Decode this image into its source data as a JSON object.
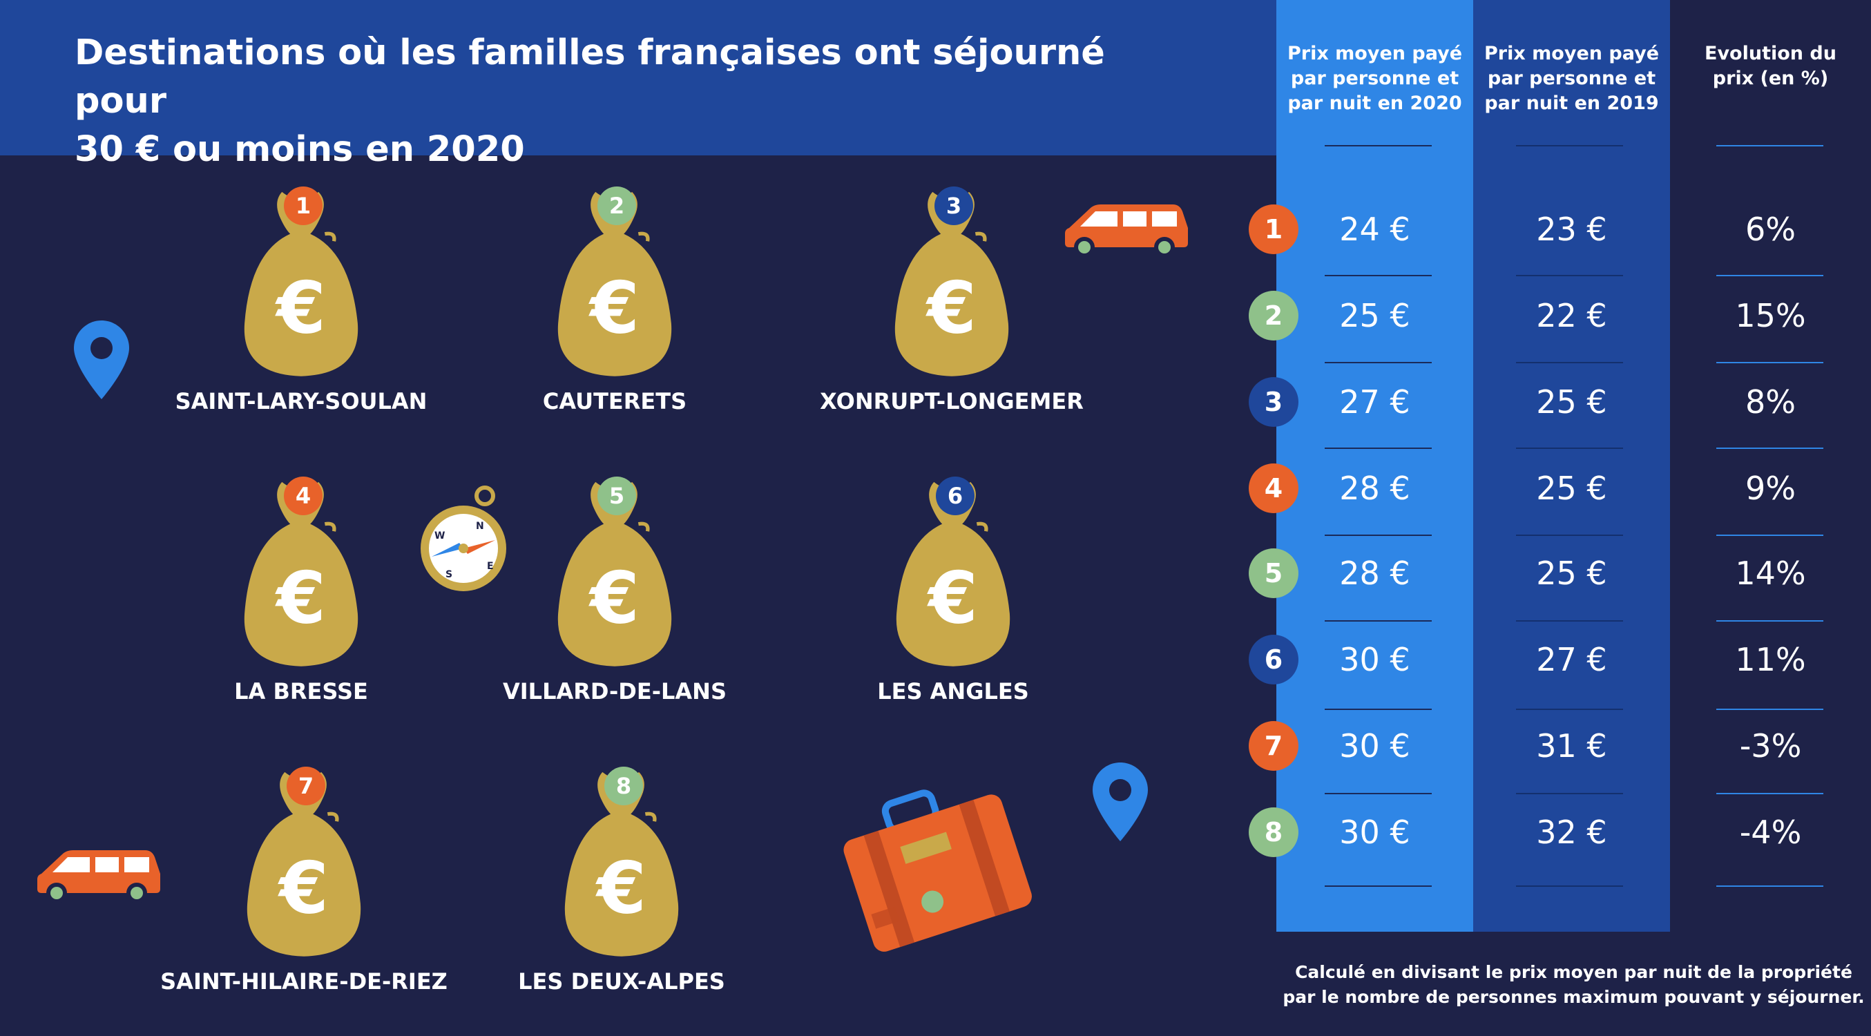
{
  "title_line1": "Destinations où les familles françaises ont séjourné pour",
  "title_line2": "30 € ou moins en 2020",
  "colors": {
    "orange": "#e8622a",
    "green": "#8fc18a",
    "blue": "#1f479b",
    "bag": "#c9a94a"
  },
  "destinations": [
    {
      "rank": "1",
      "name": "SAINT-LARY-SOULAN",
      "color": "orange"
    },
    {
      "rank": "2",
      "name": "CAUTERETS",
      "color": "green"
    },
    {
      "rank": "3",
      "name": "XONRUPT-LONGEMER",
      "color": "blue"
    },
    {
      "rank": "4",
      "name": "LA BRESSE",
      "color": "orange"
    },
    {
      "rank": "5",
      "name": "VILLARD-DE-LANS",
      "color": "green"
    },
    {
      "rank": "6",
      "name": "LES ANGLES",
      "color": "blue"
    },
    {
      "rank": "7",
      "name": "SAINT-HILAIRE-DE-RIEZ",
      "color": "orange"
    },
    {
      "rank": "8",
      "name": "LES DEUX-ALPES",
      "color": "green"
    }
  ],
  "euro_symbol": "€",
  "compass_letters": {
    "n": "N",
    "e": "E",
    "s": "S",
    "w": "W"
  },
  "table": {
    "headers": {
      "price_2020": [
        "Prix moyen payé",
        "par personne et",
        "par nuit en 2020"
      ],
      "price_2019": [
        "Prix moyen payé",
        "par personne et",
        "par nuit en 2019"
      ],
      "evolution": [
        "Evolution du",
        "prix (en %)"
      ]
    },
    "rows": [
      {
        "rank": "1",
        "color": "orange",
        "p2020": "24 €",
        "p2019": "23 €",
        "evo": "6%"
      },
      {
        "rank": "2",
        "color": "green",
        "p2020": "25 €",
        "p2019": "22 €",
        "evo": "15%"
      },
      {
        "rank": "3",
        "color": "blue",
        "p2020": "27 €",
        "p2019": "25 €",
        "evo": "8%"
      },
      {
        "rank": "4",
        "color": "orange",
        "p2020": "28 €",
        "p2019": "25 €",
        "evo": "9%"
      },
      {
        "rank": "5",
        "color": "green",
        "p2020": "28 €",
        "p2019": "25 €",
        "evo": "14%"
      },
      {
        "rank": "6",
        "color": "blue",
        "p2020": "30 €",
        "p2019": "27 €",
        "evo": "11%"
      },
      {
        "rank": "7",
        "color": "orange",
        "p2020": "30 €",
        "p2019": "31 €",
        "evo": "-3%"
      },
      {
        "rank": "8",
        "color": "green",
        "p2020": "30 €",
        "p2019": "32 €",
        "evo": "-4%"
      }
    ]
  },
  "footnote": [
    "Calculé en divisant le prix moyen par nuit de la propriété",
    "par le nombre de personnes maximum pouvant y séjourner."
  ]
}
